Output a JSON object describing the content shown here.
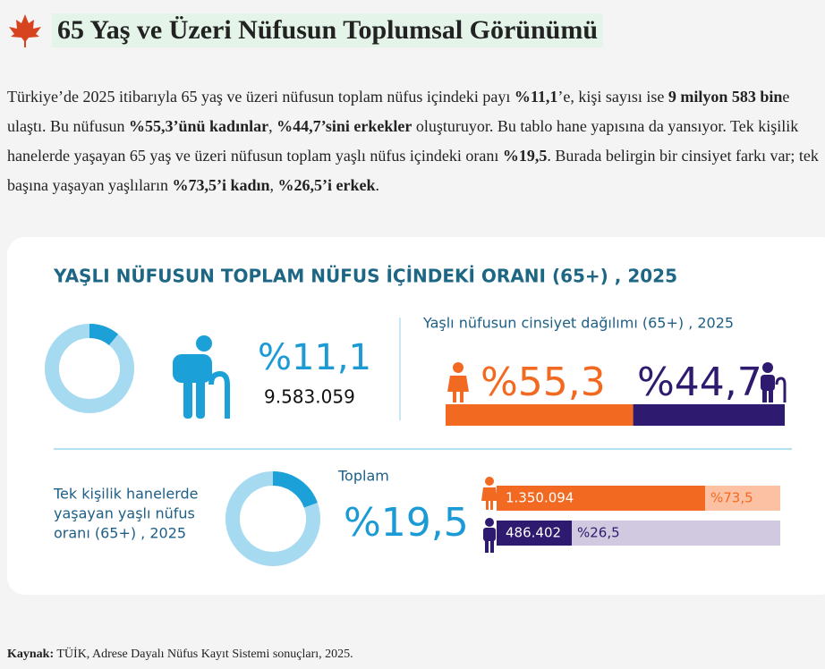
{
  "header": {
    "title": "65 Yaş ve Üzeri Nüfusun Toplumsal Görünümü"
  },
  "paragraph": [
    {
      "text": "Türkiye’de 2025 itibarıyla 65 yaş ve üzeri nüfusun toplam nüfus içindeki payı ",
      "bold": false
    },
    {
      "text": "%11,1",
      "bold": true
    },
    {
      "text": "’e, kişi sayısı ise ",
      "bold": false
    },
    {
      "text": "9 milyon 583 bin",
      "bold": true
    },
    {
      "text": "e ulaştı. Bu nüfusun ",
      "bold": false
    },
    {
      "text": "%55,3’ünü kadınlar",
      "bold": true
    },
    {
      "text": ", ",
      "bold": false
    },
    {
      "text": "%44,7’sini erkekler",
      "bold": true
    },
    {
      "text": " oluşturuyor. Bu tablo hane yapısına da yansıyor. Tek kişilik hanelerde yaşayan 65 yaş ve üzeri nüfusun toplam yaşlı nüfus içindeki oranı ",
      "bold": false
    },
    {
      "text": "%19,5",
      "bold": true
    },
    {
      "text": ". Burada belirgin bir cinsiyet farkı var; tek başına yaşayan yaşlıların ",
      "bold": false
    },
    {
      "text": "%73,5’i kadın",
      "bold": true
    },
    {
      "text": ", ",
      "bold": false
    },
    {
      "text": "%26,5’i erkek",
      "bold": true
    },
    {
      "text": ".",
      "bold": false
    }
  ],
  "infographic": {
    "title": "YAŞLI NÜFUSUN TOPLAM NÜFUS İÇİNDEKİ ORANI (65+) , 2025",
    "total_share": {
      "value": 11.1,
      "label": "%11,1"
    },
    "population": "9.583.059",
    "gender": {
      "title": "Yaşlı nüfusun cinsiyet dağılımı (65+) , 2025",
      "female": {
        "value": 55.3,
        "label": "%55,3"
      },
      "male": {
        "value": 44.7,
        "label": "%44,7"
      }
    },
    "living_alone": {
      "caption": [
        "Tek kişilik hanelerde",
        "yaşayan yaşlı nüfus",
        "oranı (65+) , 2025"
      ],
      "total_title": "Toplam",
      "share": {
        "value": 19.5,
        "label": "%19,5"
      },
      "female": {
        "count": "1.350.094",
        "value": 73.5,
        "label": "%73,5"
      },
      "male": {
        "count": "486.402",
        "value": 26.5,
        "label": "%26,5"
      }
    }
  },
  "source": {
    "label": "Kaynak:",
    "text": " TÜİK, Adrese Dayalı Nüfus Kayıt Sistemi sonuçları, 2025."
  }
}
